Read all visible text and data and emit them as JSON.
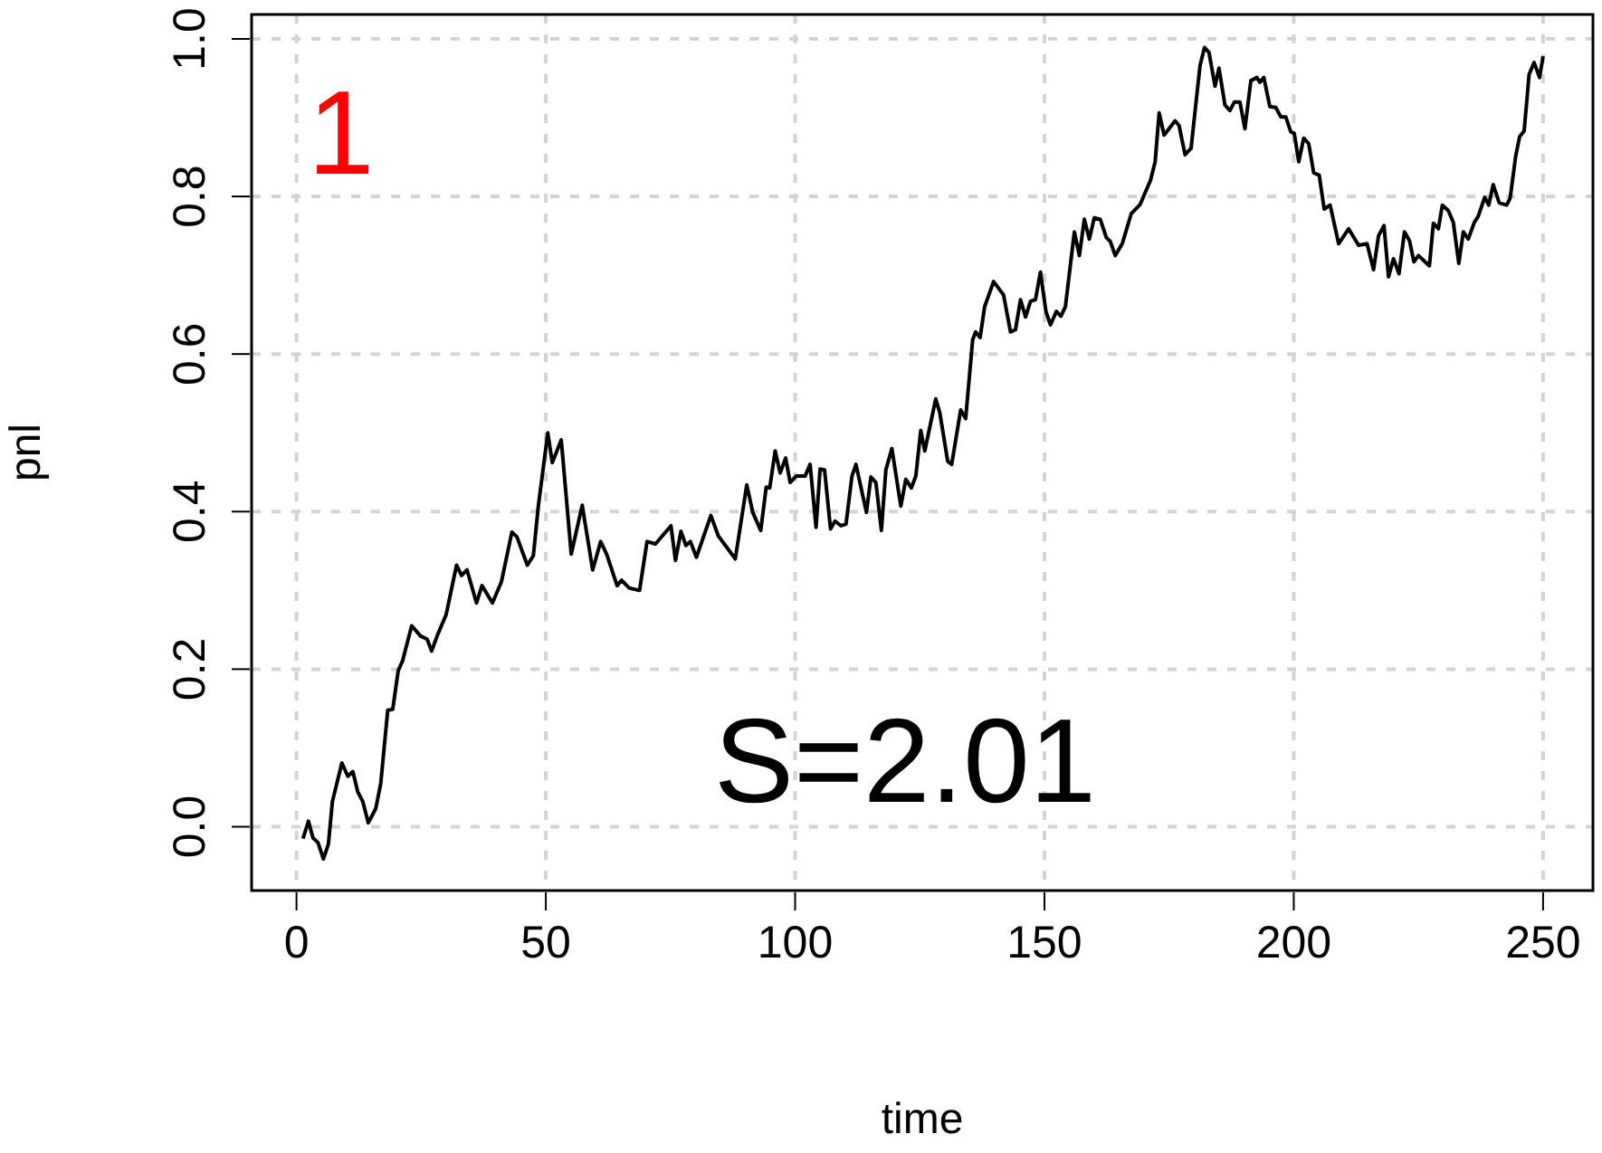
{
  "chart_data": {
    "type": "line",
    "xlabel": "time",
    "ylabel": "pnl",
    "xlim": [
      -9,
      260
    ],
    "ylim": [
      -0.081,
      1.031
    ],
    "xticks": [
      0,
      50,
      100,
      150,
      200,
      250
    ],
    "yticks": [
      {
        "value": 0,
        "label": "0.0"
      },
      {
        "value": 0.2,
        "label": "0.2"
      },
      {
        "value": 0.4,
        "label": "0.4"
      },
      {
        "value": 0.6,
        "label": "0.6"
      },
      {
        "value": 0.8,
        "label": "0.8"
      },
      {
        "value": 1,
        "label": "1.0"
      }
    ],
    "grid": true,
    "marker": "none",
    "line_style": "solid",
    "annotations": [
      "1",
      "S=2.01"
    ],
    "series": [
      {
        "color": "#000000",
        "x": [
          1.3,
          2.4,
          3.3,
          4.3,
          5.4,
          6.4,
          7.2,
          9.1,
          10.3,
          11.3,
          12.3,
          13.3,
          14.4,
          15.9,
          16.9,
          18.3,
          19.3,
          20.4,
          21.3,
          23.1,
          24.9,
          26.2,
          27.1,
          28.2,
          30,
          32.1,
          33.1,
          34.2,
          36.1,
          37.2,
          39.3,
          41.1,
          43.2,
          44.2,
          46.3,
          47.5,
          48.5,
          50.4,
          51.3,
          53.1,
          55.1,
          57.3,
          59.4,
          61,
          62.2,
          64.3,
          65.2,
          66.7,
          68.8,
          70.3,
          72,
          75.1,
          76,
          77.1,
          78.1,
          79,
          80.2,
          83.1,
          84.6,
          88,
          90.3,
          91.5,
          93.1,
          94.2,
          94.9,
          96,
          97,
          98.1,
          99,
          100.2,
          102,
          103,
          104.2,
          105,
          105.9,
          107.1,
          108,
          109.2,
          110.2,
          111.4,
          112.2,
          114.3,
          115.2,
          116.2,
          117.3,
          118.2,
          119.4,
          121.2,
          122.2,
          123.3,
          124.2,
          125.2,
          126,
          128.2,
          129,
          130.6,
          131.4,
          133.2,
          134.2,
          135.6,
          136.2,
          137.1,
          138,
          139.8,
          141.8,
          143.2,
          144.2,
          145.2,
          146.2,
          147.2,
          148.2,
          149.2,
          150.3,
          151.2,
          152.4,
          153.3,
          154.2,
          156,
          157,
          158,
          159,
          160,
          161.2,
          162.4,
          163.2,
          164.2,
          165.6,
          167.4,
          169.2,
          171.3,
          172.2,
          173,
          174,
          176.2,
          177,
          178.2,
          179.4,
          181.2,
          182.1,
          183,
          184.2,
          185,
          186.2,
          187.2,
          188.1,
          189.2,
          190.2,
          191.4,
          192.6,
          193.2,
          194,
          195.2,
          196.4,
          197.4,
          198.4,
          199.4,
          200.1,
          201,
          202,
          203,
          204,
          205.1,
          206.1,
          207.3,
          209,
          211,
          213,
          214.7,
          216,
          217,
          218.1,
          219,
          220,
          221.1,
          222.2,
          223.2,
          224.1,
          225,
          227.2,
          228,
          229,
          229.8,
          231,
          232,
          233.1,
          234,
          235,
          236.2,
          237,
          238.3,
          239.1,
          240,
          241.2,
          242.7,
          243.4,
          244.5,
          245.3,
          246.2,
          247.2,
          248.2,
          249.3,
          250
        ],
        "values": [
          -0.015,
          0.007,
          -0.014,
          -0.02,
          -0.041,
          -0.022,
          0.032,
          0.081,
          0.064,
          0.07,
          0.044,
          0.032,
          0.005,
          0.023,
          0.055,
          0.148,
          0.149,
          0.198,
          0.211,
          0.255,
          0.242,
          0.238,
          0.223,
          0.242,
          0.269,
          0.332,
          0.319,
          0.326,
          0.284,
          0.306,
          0.284,
          0.311,
          0.374,
          0.368,
          0.332,
          0.344,
          0.407,
          0.5,
          0.462,
          0.491,
          0.346,
          0.408,
          0.326,
          0.362,
          0.346,
          0.306,
          0.313,
          0.303,
          0.3,
          0.362,
          0.359,
          0.382,
          0.338,
          0.375,
          0.357,
          0.362,
          0.342,
          0.395,
          0.369,
          0.34,
          0.434,
          0.399,
          0.376,
          0.431,
          0.43,
          0.477,
          0.449,
          0.468,
          0.437,
          0.445,
          0.445,
          0.46,
          0.38,
          0.454,
          0.453,
          0.378,
          0.388,
          0.382,
          0.384,
          0.445,
          0.46,
          0.399,
          0.444,
          0.437,
          0.376,
          0.453,
          0.48,
          0.407,
          0.441,
          0.43,
          0.445,
          0.503,
          0.477,
          0.543,
          0.526,
          0.464,
          0.46,
          0.529,
          0.518,
          0.618,
          0.628,
          0.621,
          0.66,
          0.692,
          0.675,
          0.628,
          0.631,
          0.669,
          0.647,
          0.667,
          0.669,
          0.704,
          0.654,
          0.637,
          0.654,
          0.648,
          0.66,
          0.755,
          0.725,
          0.771,
          0.746,
          0.773,
          0.771,
          0.748,
          0.743,
          0.725,
          0.74,
          0.778,
          0.79,
          0.821,
          0.844,
          0.906,
          0.878,
          0.896,
          0.89,
          0.853,
          0.861,
          0.966,
          0.989,
          0.983,
          0.94,
          0.963,
          0.916,
          0.909,
          0.92,
          0.92,
          0.886,
          0.947,
          0.951,
          0.945,
          0.951,
          0.914,
          0.913,
          0.901,
          0.901,
          0.882,
          0.88,
          0.844,
          0.874,
          0.867,
          0.83,
          0.827,
          0.784,
          0.789,
          0.74,
          0.759,
          0.738,
          0.74,
          0.707,
          0.75,
          0.763,
          0.698,
          0.721,
          0.702,
          0.755,
          0.744,
          0.717,
          0.725,
          0.712,
          0.766,
          0.759,
          0.789,
          0.782,
          0.767,
          0.715,
          0.755,
          0.746,
          0.767,
          0.775,
          0.799,
          0.789,
          0.815,
          0.792,
          0.789,
          0.798,
          0.851,
          0.876,
          0.883,
          0.955,
          0.97,
          0.951,
          0.978
        ]
      }
    ]
  }
}
